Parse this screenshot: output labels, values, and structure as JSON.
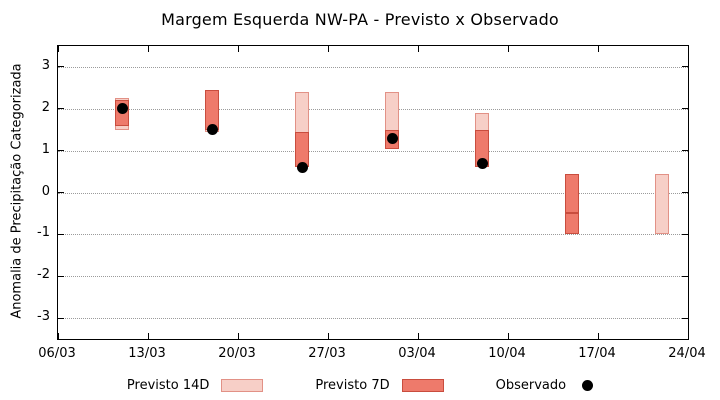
{
  "chart_data": {
    "type": "range-bar+scatter",
    "title": "Margem Esquerda NW-PA - Previsto x Observado",
    "xlabel": "",
    "ylabel": "Anomalia de Precipitação Categorizada",
    "ylim": [
      -3.5,
      3.5
    ],
    "y_ticks": [
      3,
      2,
      1,
      0,
      -1,
      -2,
      -3
    ],
    "x_tick_labels": [
      "06/03",
      "13/03",
      "20/03",
      "27/03",
      "03/04",
      "10/04",
      "17/04",
      "24/04"
    ],
    "x_tick_days": [
      0,
      7,
      14,
      21,
      28,
      35,
      42,
      49
    ],
    "x_range": [
      0,
      49
    ],
    "grid": "horizontal-dotted",
    "legend_position": "bottom",
    "colors": {
      "previsto14d_fill": "#f7cfc7",
      "previsto14d_border": "#e29186",
      "previsto7d_fill": "#ee7a6b",
      "previsto7d_border": "#c94d3e",
      "observado": "#000000"
    },
    "series": [
      {
        "name": "Previsto 14D",
        "type": "range_bar",
        "points": [
          {
            "day": 5,
            "low": 1.5,
            "high": 2.25
          },
          {
            "day": 12,
            "low": 1.45,
            "high": 2.45
          },
          {
            "day": 19,
            "low": 0.6,
            "high": 2.4
          },
          {
            "day": 26,
            "low": 1.1,
            "high": 2.4
          },
          {
            "day": 33,
            "low": 0.6,
            "high": 1.9
          },
          {
            "day": 40,
            "low": -1.0,
            "high": 0.45
          },
          {
            "day": 47,
            "low": -1.0,
            "high": 0.45
          }
        ]
      },
      {
        "name": "Previsto 7D",
        "type": "range_bar",
        "points": [
          {
            "day": 5,
            "low": 1.6,
            "high": 2.2
          },
          {
            "day": 12,
            "low": 1.5,
            "high": 2.45
          },
          {
            "day": 19,
            "low": 0.6,
            "high": 1.45
          },
          {
            "day": 26,
            "low": 1.05,
            "high": 1.5
          },
          {
            "day": 33,
            "low": 0.6,
            "high": 1.5
          },
          {
            "day": 40,
            "low": -1.0,
            "high": -0.5
          },
          {
            "day": 40,
            "low": -0.5,
            "high": 0.45
          }
        ]
      },
      {
        "name": "Observado",
        "type": "scatter",
        "points": [
          {
            "day": 5,
            "value": 2.0
          },
          {
            "day": 12,
            "value": 1.5
          },
          {
            "day": 19,
            "value": 0.6
          },
          {
            "day": 26,
            "value": 1.3
          },
          {
            "day": 33,
            "value": 0.7
          }
        ]
      }
    ]
  }
}
